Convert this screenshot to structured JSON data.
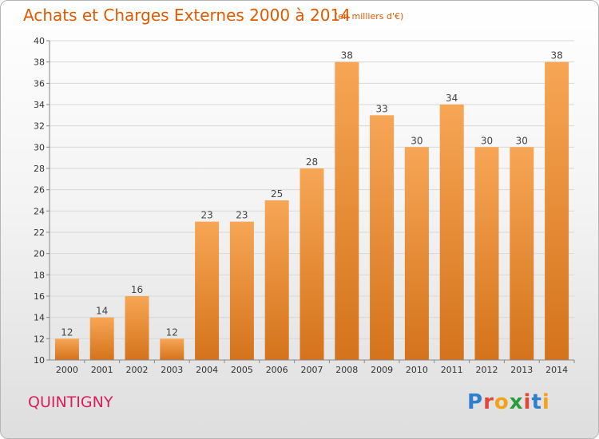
{
  "title": "Achats et Charges Externes 2000 à 2014",
  "subtitle": "(en milliers d'€)",
  "place": "QUINTIGNY",
  "logo": {
    "letters": [
      "P",
      "r",
      "o",
      "x",
      "i",
      "t",
      "i"
    ],
    "colors": [
      "#2f7fcf",
      "#e0473a",
      "#f5a21b",
      "#2a9d3a",
      "#e0473a",
      "#2f7fcf",
      "#f5a21b"
    ]
  },
  "colors": {
    "bar_light": "#f7a655",
    "bar_dark": "#d4731b",
    "grid": "#d8d8d8",
    "axis": "#888888"
  },
  "chart_data": {
    "type": "bar",
    "title": "Achats et Charges Externes 2000 à 2014",
    "subtitle": "(en milliers d'€)",
    "categories": [
      "2000",
      "2001",
      "2002",
      "2003",
      "2004",
      "2005",
      "2006",
      "2007",
      "2008",
      "2009",
      "2010",
      "2011",
      "2012",
      "2013",
      "2014"
    ],
    "values": [
      12,
      14,
      16,
      12,
      23,
      23,
      25,
      28,
      38,
      33,
      30,
      34,
      30,
      30,
      38
    ],
    "ylim": [
      10,
      40
    ],
    "yticks": [
      10,
      12,
      14,
      16,
      18,
      20,
      22,
      24,
      26,
      28,
      30,
      32,
      34,
      36,
      38,
      40
    ],
    "grid": true,
    "legend": "none"
  }
}
